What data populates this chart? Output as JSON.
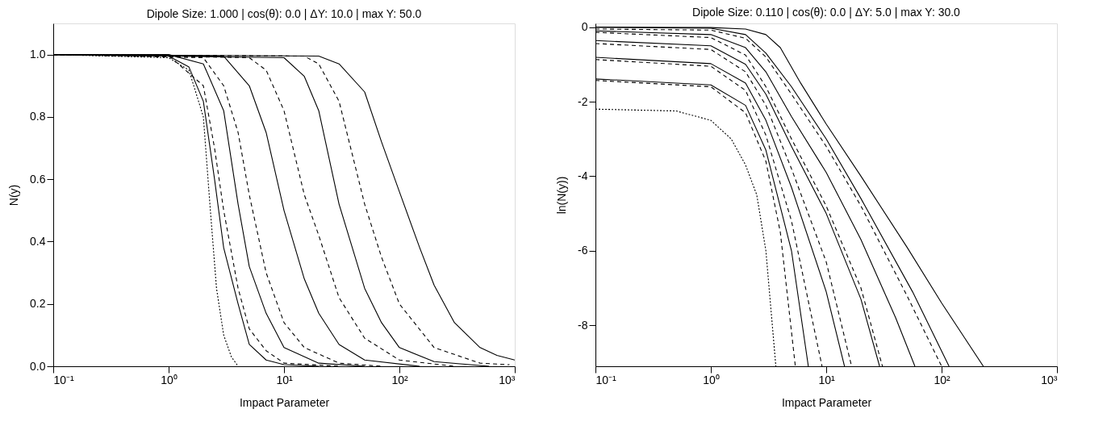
{
  "chart_data": [
    {
      "type": "line",
      "title": "Dipole Size: 1.000 | cos(θ): 0.0 | ΔY: 10.0 | max Y: 50.0",
      "xlabel": "Impact Parameter",
      "ylabel": "N(y)",
      "log": "x",
      "grid": false,
      "xlim": [
        0.1,
        1000
      ],
      "xticks": [
        {
          "value": 0.1,
          "label": "10⁻¹"
        },
        {
          "value": 1,
          "label": "10⁰"
        },
        {
          "value": 10,
          "label": "10¹"
        },
        {
          "value": 100,
          "label": "10²"
        },
        {
          "value": 1000,
          "label": "10³"
        }
      ],
      "ylim": [
        0,
        1.1
      ],
      "yticks": [
        {
          "value": 0,
          "label": "0.0"
        },
        {
          "value": 0.2,
          "label": "0.2"
        },
        {
          "value": 0.4,
          "label": "0.4"
        },
        {
          "value": 0.6,
          "label": "0.6"
        },
        {
          "value": 0.8,
          "label": "0.8"
        },
        {
          "value": 1,
          "label": "1.0"
        }
      ],
      "series": [
        {
          "color": "#000000",
          "line_style": "dotted",
          "x": [
            0.1,
            1,
            1.5,
            2,
            2.3,
            2.6,
            3,
            3.5,
            4
          ],
          "values": [
            1,
            0.99,
            0.95,
            0.8,
            0.5,
            0.25,
            0.1,
            0.03,
            0
          ]
        },
        {
          "color": "#000000",
          "line_style": "solid",
          "x": [
            0.1,
            1,
            1.5,
            2,
            2.5,
            3,
            4,
            5,
            7,
            10,
            20
          ],
          "values": [
            1,
            0.995,
            0.96,
            0.85,
            0.6,
            0.38,
            0.2,
            0.07,
            0.02,
            0.005,
            0
          ]
        },
        {
          "color": "#000000",
          "line_style": "dashed",
          "x": [
            0.1,
            1,
            2,
            2.5,
            3,
            4,
            5,
            7,
            10,
            30
          ],
          "values": [
            1,
            0.997,
            0.9,
            0.7,
            0.5,
            0.25,
            0.12,
            0.05,
            0.01,
            0
          ]
        },
        {
          "color": "#000000",
          "line_style": "solid",
          "x": [
            0.1,
            1,
            2,
            3,
            4,
            5,
            7,
            10,
            20,
            50
          ],
          "values": [
            1,
            1,
            0.97,
            0.82,
            0.52,
            0.32,
            0.17,
            0.06,
            0.01,
            0
          ]
        },
        {
          "color": "#000000",
          "line_style": "dashed",
          "x": [
            0.1,
            2,
            3,
            4,
            5,
            7,
            10,
            15,
            30,
            70
          ],
          "values": [
            1,
            0.99,
            0.9,
            0.75,
            0.55,
            0.3,
            0.14,
            0.06,
            0.01,
            0
          ]
        },
        {
          "color": "#000000",
          "line_style": "solid",
          "x": [
            0.1,
            3,
            5,
            7,
            10,
            15,
            20,
            30,
            50,
            150
          ],
          "values": [
            1,
            0.995,
            0.9,
            0.75,
            0.5,
            0.28,
            0.17,
            0.07,
            0.02,
            0
          ]
        },
        {
          "color": "#000000",
          "line_style": "dashed",
          "x": [
            0.1,
            5,
            7,
            10,
            15,
            20,
            30,
            50,
            100,
            300
          ],
          "values": [
            1,
            0.99,
            0.95,
            0.82,
            0.55,
            0.42,
            0.22,
            0.09,
            0.02,
            0
          ]
        },
        {
          "color": "#000000",
          "line_style": "solid",
          "x": [
            0.1,
            10,
            15,
            20,
            30,
            50,
            70,
            100,
            200,
            600
          ],
          "values": [
            1,
            0.99,
            0.93,
            0.82,
            0.52,
            0.25,
            0.14,
            0.06,
            0.015,
            0
          ]
        },
        {
          "color": "#000000",
          "line_style": "dashed",
          "x": [
            0.1,
            15,
            20,
            30,
            50,
            70,
            100,
            200,
            500,
            900
          ],
          "values": [
            1,
            0.995,
            0.97,
            0.85,
            0.52,
            0.35,
            0.2,
            0.06,
            0.01,
            0.005
          ]
        },
        {
          "color": "#000000",
          "line_style": "solid",
          "x": [
            0.1,
            20,
            30,
            50,
            70,
            100,
            150,
            200,
            300,
            500,
            700,
            1000
          ],
          "values": [
            1,
            0.995,
            0.97,
            0.88,
            0.72,
            0.56,
            0.38,
            0.26,
            0.14,
            0.06,
            0.035,
            0.02
          ]
        }
      ]
    },
    {
      "type": "line",
      "title": "Dipole Size: 0.110 | cos(θ): 0.0 | ΔY: 5.0 | max Y: 30.0",
      "xlabel": "Impact Parameter",
      "ylabel": "ln(N(y))",
      "log": "x",
      "grid": false,
      "xlim": [
        0.1,
        1000
      ],
      "xticks": [
        {
          "value": 0.1,
          "label": "10⁻¹"
        },
        {
          "value": 1,
          "label": "10⁰"
        },
        {
          "value": 10,
          "label": "10¹"
        },
        {
          "value": 100,
          "label": "10²"
        },
        {
          "value": 1000,
          "label": "10³"
        }
      ],
      "ylim": [
        -9.1,
        0.1
      ],
      "yticks": [
        -8,
        -6,
        -4,
        -2,
        0
      ],
      "series": [
        {
          "color": "#000000",
          "line_style": "solid",
          "x": [
            0.1,
            1,
            2,
            3,
            4,
            6,
            10,
            20,
            50,
            100,
            230
          ],
          "values": [
            0,
            -0.01,
            -0.05,
            -0.2,
            -0.55,
            -1.5,
            -2.6,
            -4.0,
            -5.9,
            -7.4,
            -9.1
          ]
        },
        {
          "color": "#000000",
          "line_style": "solid",
          "x": [
            0.1,
            1,
            2,
            3,
            5,
            10,
            20,
            56,
            116
          ],
          "values": [
            0,
            -0.03,
            -0.2,
            -0.7,
            -1.6,
            -3.0,
            -4.6,
            -7.1,
            -9.1
          ]
        },
        {
          "color": "#000000",
          "line_style": "dashed",
          "x": [
            0.1,
            1,
            2,
            3,
            5,
            10,
            20,
            50,
            100
          ],
          "values": [
            -0.05,
            -0.08,
            -0.3,
            -0.8,
            -1.8,
            -3.2,
            -4.8,
            -7.2,
            -9.1
          ]
        },
        {
          "color": "#000000",
          "line_style": "solid",
          "x": [
            0.1,
            1,
            2,
            3,
            5,
            10,
            20,
            40,
            58.7
          ],
          "values": [
            -0.1,
            -0.2,
            -0.55,
            -1.2,
            -2.4,
            -3.9,
            -5.7,
            -7.8,
            -9.1
          ]
        },
        {
          "color": "#000000",
          "line_style": "dashed",
          "x": [
            0.1,
            1,
            2,
            3,
            5,
            10,
            20,
            30.7
          ],
          "values": [
            -0.14,
            -0.28,
            -0.75,
            -1.6,
            -3.0,
            -4.8,
            -7.0,
            -9.1
          ]
        },
        {
          "color": "#000000",
          "line_style": "solid",
          "x": [
            0.1,
            1,
            2,
            3,
            5,
            10,
            20,
            29
          ],
          "values": [
            -0.36,
            -0.5,
            -1.0,
            -1.8,
            -3.2,
            -5.0,
            -7.3,
            -9.1
          ]
        },
        {
          "color": "#000000",
          "line_style": "dashed",
          "x": [
            0.1,
            1,
            2,
            3,
            5,
            10,
            16.6
          ],
          "values": [
            -0.44,
            -0.6,
            -1.2,
            -2.1,
            -3.8,
            -6.3,
            -9.1
          ]
        },
        {
          "color": "#000000",
          "line_style": "solid",
          "x": [
            0.1,
            1,
            2,
            3,
            5,
            10,
            14.4
          ],
          "values": [
            -0.81,
            -0.98,
            -1.5,
            -2.5,
            -4.3,
            -7.1,
            -9.1
          ]
        },
        {
          "color": "#000000",
          "line_style": "dashed",
          "x": [
            0.1,
            1,
            2,
            3,
            5,
            9.2
          ],
          "values": [
            -0.87,
            -1.05,
            -1.7,
            -2.9,
            -5.2,
            -9.1
          ]
        },
        {
          "color": "#000000",
          "line_style": "solid",
          "x": [
            0.1,
            1,
            2,
            3,
            5,
            7
          ],
          "values": [
            -1.39,
            -1.55,
            -2.1,
            -3.3,
            -6.0,
            -9.1
          ]
        },
        {
          "color": "#000000",
          "line_style": "dashed",
          "x": [
            0.1,
            1,
            2,
            3,
            4,
            5.4
          ],
          "values": [
            -1.43,
            -1.6,
            -2.3,
            -3.6,
            -5.5,
            -9.1
          ]
        },
        {
          "color": "#000000",
          "line_style": "dotted",
          "x": [
            0.1,
            0.5,
            1,
            1.5,
            2,
            2.5,
            3,
            3.66
          ],
          "values": [
            -2.2,
            -2.25,
            -2.5,
            -3.0,
            -3.7,
            -4.5,
            -6.0,
            -9.1
          ]
        }
      ]
    }
  ]
}
